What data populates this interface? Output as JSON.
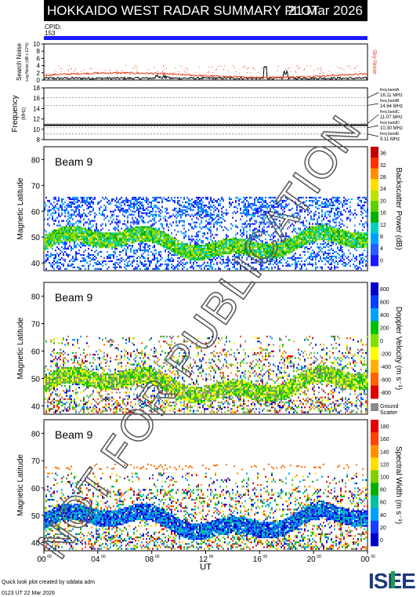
{
  "header": {
    "title": "HOKKAIDO WEST RADAR SUMMARY PLOT",
    "date": "21 Mar 2026",
    "cpid_label": "CPID:",
    "cpid_value": "153"
  },
  "watermark": "NOT FOR PUBLICATION",
  "footer": {
    "credit": "Quick look plot created by sddata adm",
    "timestamp": "0123 UT 22 Mar 2026"
  },
  "logo": "ISEE",
  "colors": {
    "cpid_bar": "#1a1aff",
    "noise_line": "#e8401c",
    "ground_scatter": "#8c8c8c"
  },
  "chart_data": [
    {
      "type": "line",
      "name": "noise-panel",
      "ylabel": "Search Noise",
      "ylabel2": "Log Noise (dB x 10^6)",
      "right_label": "Sky Noise",
      "ylim": [
        0,
        10
      ],
      "yticks": [
        "0",
        "2",
        "4",
        "6",
        "8",
        "10"
      ]
    },
    {
      "type": "line",
      "name": "frequency-panel",
      "ylabel": "Frequency",
      "ylabel_unit": "(MHz)",
      "ylim": [
        8,
        18
      ],
      "yticks": [
        "8",
        "10",
        "12",
        "14",
        "16",
        "18"
      ],
      "series": [
        {
          "values": [
            10.8,
            10.8,
            10.8,
            10.8,
            10.8
          ]
        }
      ],
      "bands": [
        {
          "label": "freq bandA",
          "value": "16.11 MHz",
          "y": 16.1
        },
        {
          "label": "freq bandB",
          "value": "14.64 MHz",
          "y": 14.6
        },
        {
          "label": "freq bandC",
          "value": "11.07 MHz",
          "y": 11.1
        },
        {
          "label": "freq bandD",
          "value": "10.30 MHz",
          "y": 10.3
        },
        {
          "label": "freq bandE",
          "value": "9.11 MHz",
          "y": 9.1
        }
      ]
    },
    {
      "type": "heatmap",
      "name": "power-panel",
      "beam": "Beam  9",
      "ylabel": "Magnetic Latitude",
      "ylim": [
        37,
        85
      ],
      "yticks": [
        "40",
        "50",
        "60",
        "70",
        "80"
      ],
      "colorbar_label": "Backscatter Power (dB)",
      "colorbar_ticks": [
        "0",
        "4",
        "8",
        "12",
        "16",
        "20",
        "24",
        "28",
        "32",
        "36"
      ]
    },
    {
      "type": "heatmap",
      "name": "velocity-panel",
      "beam": "Beam  9",
      "ylabel": "Magnetic Latitude",
      "ylim": [
        37,
        85
      ],
      "yticks": [
        "40",
        "50",
        "60",
        "70",
        "80"
      ],
      "colorbar_label": "Doppler Velocity (m s⁻¹)",
      "colorbar_ticks": [
        "800",
        "600",
        "400",
        "200",
        "0",
        "-200",
        "-400",
        "-600",
        "-800"
      ],
      "ground_label": "Ground",
      "ground_label2": "Scatter"
    },
    {
      "type": "heatmap",
      "name": "width-panel",
      "beam": "Beam  9",
      "ylabel": "Magnetic Latitude",
      "ylim": [
        37,
        85
      ],
      "yticks": [
        "40",
        "50",
        "60",
        "70",
        "80"
      ],
      "colorbar_label": "Spectral Width (m s⁻¹)",
      "colorbar_ticks": [
        "0",
        "20",
        "40",
        "60",
        "80",
        "100",
        "120",
        "140",
        "160",
        "180"
      ],
      "xlabel": "UT",
      "xticks": [
        "00",
        "04",
        "08",
        "12",
        "16",
        "20",
        "00"
      ],
      "xtick_suffix": "00"
    }
  ]
}
